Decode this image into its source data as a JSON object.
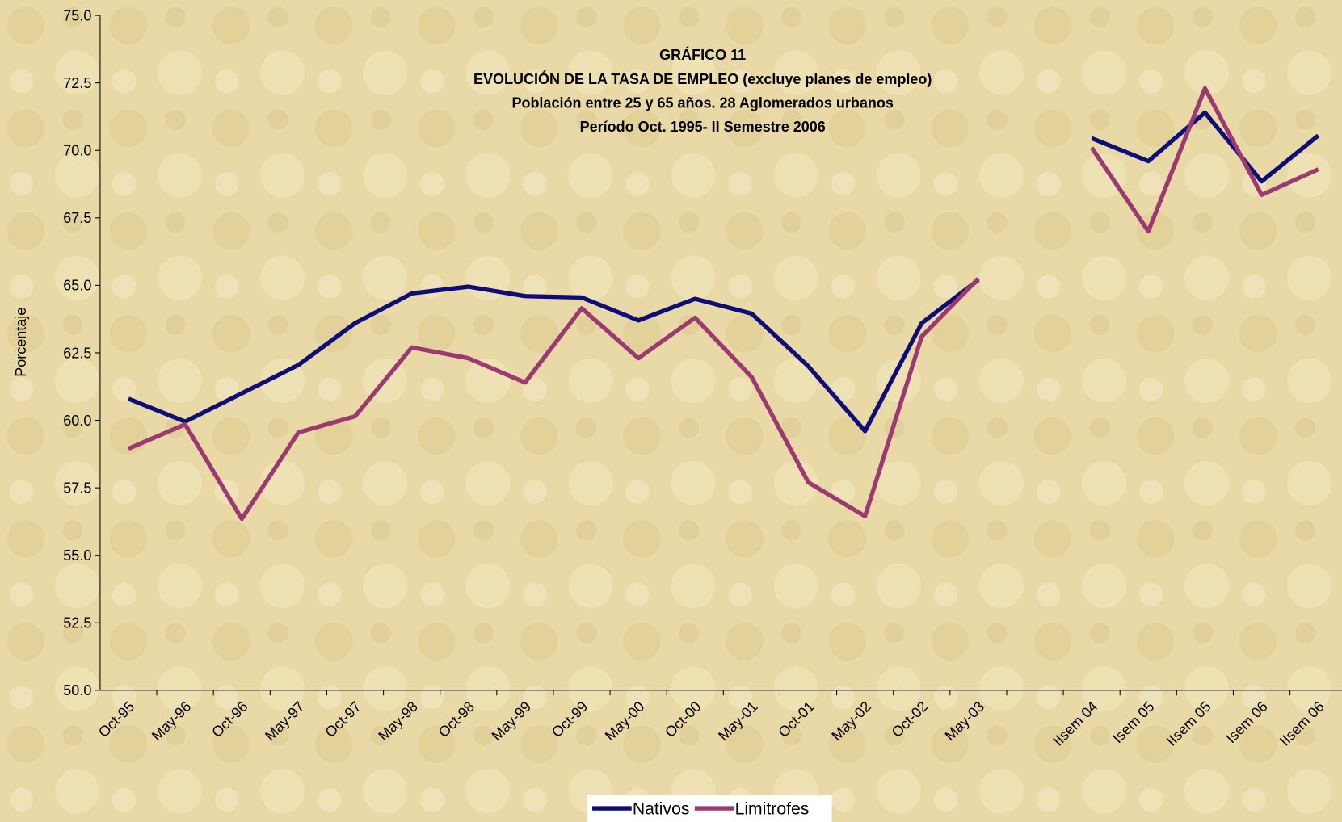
{
  "chart_data": {
    "type": "line",
    "title": "GRÁFICO 11",
    "subtitle": [
      "EVOLUCIÓN DE LA TASA DE EMPLEO (excluye planes de empleo)",
      "Población entre 25 y 65 años. 28 Aglomerados urbanos",
      "Período Oct. 1995- II Semestre 2006"
    ],
    "y_label": "Porcentaje",
    "categories": [
      "Oct-95",
      "May-96",
      "Oct-96",
      "May-97",
      "Oct-97",
      "May-98",
      "Oct-98",
      "May-99",
      "Oct-99",
      "May-00",
      "Oct-00",
      "May-01",
      "Oct-01",
      "May-02",
      "Oct-02",
      "May-03",
      null,
      "IIsem 04",
      "Isem 05",
      "IIsem 05",
      "Isem 06",
      "IIsem 06"
    ],
    "series": [
      {
        "name": "Nativos",
        "color": "#0c0c7a",
        "values": [
          60.8,
          59.95,
          61.0,
          62.05,
          63.6,
          64.7,
          64.95,
          64.6,
          64.55,
          63.7,
          64.5,
          63.95,
          62.0,
          59.6,
          63.6,
          65.2,
          null,
          70.45,
          69.6,
          71.4,
          68.85,
          70.55
        ]
      },
      {
        "name": "Limitrofes",
        "color": "#9c3872",
        "values": [
          58.95,
          59.85,
          56.35,
          59.55,
          60.15,
          62.7,
          62.3,
          61.4,
          64.15,
          62.3,
          63.8,
          61.6,
          57.7,
          56.45,
          63.1,
          65.25,
          null,
          70.1,
          67.0,
          72.3,
          68.35,
          69.3
        ]
      }
    ],
    "ylim": [
      50,
      75
    ],
    "yticks": [
      {
        "value": 50,
        "label": "50.0"
      },
      {
        "value": 52.5,
        "label": "52.5"
      },
      {
        "value": 55,
        "label": "55.0"
      },
      {
        "value": 57.5,
        "label": "57.5"
      },
      {
        "value": 60,
        "label": "60.0"
      },
      {
        "value": 62.5,
        "label": "62.5"
      },
      {
        "value": 65,
        "label": "65.0"
      },
      {
        "value": 67.5,
        "label": "67.5"
      },
      {
        "value": 70,
        "label": "70.0"
      },
      {
        "value": 72.5,
        "label": "72.5"
      },
      {
        "value": 75,
        "label": "75.0"
      }
    ],
    "grid": false,
    "legend": "bottom"
  }
}
